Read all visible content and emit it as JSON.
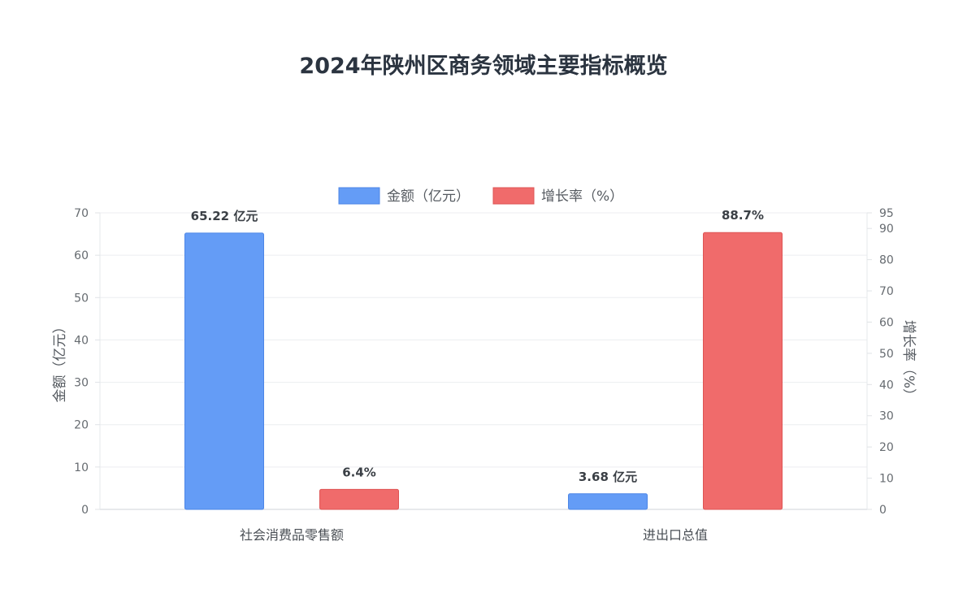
{
  "chart_data": {
    "type": "bar",
    "title": "2024年陕州区商务领域主要指标概览",
    "categories": [
      "社会消费品零售额",
      "进出口总值"
    ],
    "series": [
      {
        "name": "金额（亿元）",
        "axis": "left",
        "color": "#649cf6",
        "values": [
          65.22,
          3.68
        ],
        "value_labels": [
          "65.22 亿元",
          "3.68 亿元"
        ]
      },
      {
        "name": "增长率（%）",
        "axis": "right",
        "color": "#f06b6b",
        "values": [
          6.4,
          88.7
        ],
        "value_labels": [
          "6.4%",
          "88.7%"
        ]
      }
    ],
    "y_left": {
      "label": "金额（亿元）",
      "range": [
        0,
        70
      ],
      "ticks": [
        "0",
        "10",
        "20",
        "30",
        "40",
        "50",
        "60",
        "70"
      ]
    },
    "y_right": {
      "label": "增长率（%）",
      "range": [
        0,
        95
      ],
      "ticks": [
        "0",
        "10",
        "20",
        "30",
        "40",
        "50",
        "60",
        "70",
        "80",
        "90",
        "95"
      ]
    },
    "legend": "top-center",
    "grid": true
  }
}
